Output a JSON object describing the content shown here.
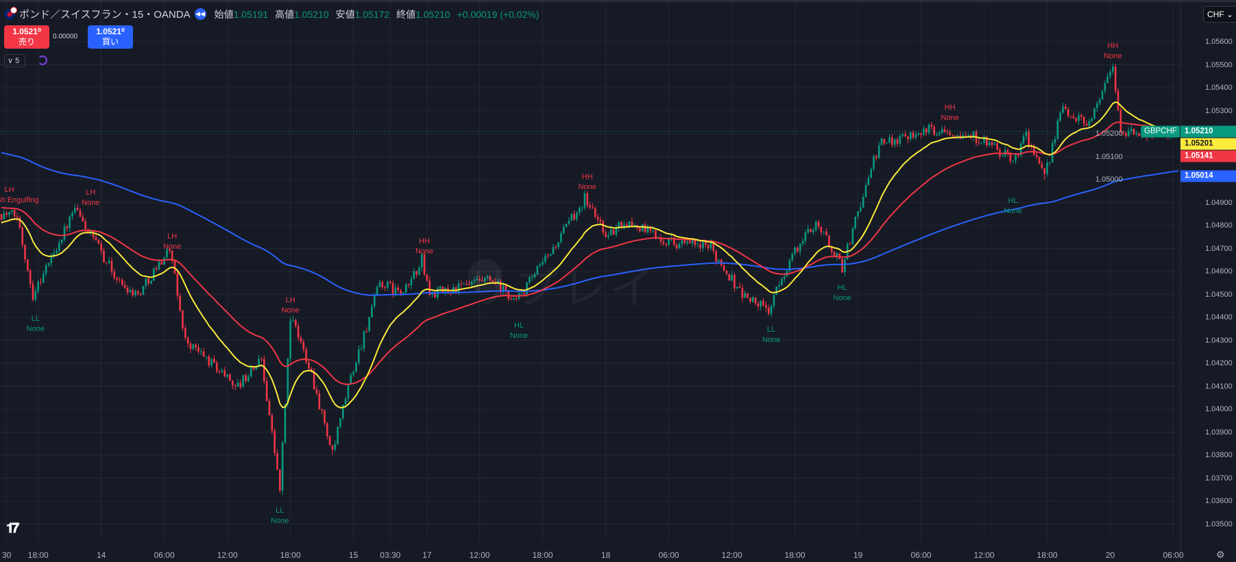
{
  "header": {
    "title": "ポンド／スイスフラン・15・OANDA",
    "open_label": "始値",
    "open": "1.05191",
    "high_label": "高値",
    "high": "1.05210",
    "low_label": "安値",
    "low": "1.05172",
    "close_label": "終値",
    "close": "1.05210",
    "change": "+0.00019 (+0.02%)"
  },
  "trade": {
    "sell_price": "1.0521⁰",
    "sell_label": "売り",
    "spread": "0.00000",
    "buy_price": "1.0521⁰",
    "buy_label": "買い",
    "lots": "∨ 5"
  },
  "currency": "CHF ⌄",
  "watermark": "リプレイ",
  "logo": "TV",
  "colors": {
    "up": "#089981",
    "down": "#f23645",
    "ema_fast": "#ffeb3b",
    "ema_mid": "#f23645",
    "ema_slow": "#2962ff",
    "bg": "#161a25",
    "grid": "#232733"
  },
  "chart_data": {
    "type": "candlestick",
    "symbol": "GBPCHF",
    "timeframe": "15",
    "ylim": [
      1.0345,
      1.0565
    ],
    "y_ticks": [
      "1.05600",
      "1.05500",
      "1.05400",
      "1.05300",
      "1.05200",
      "1.05100",
      "1.05000",
      "1.04900",
      "1.04800",
      "1.04700",
      "1.04600",
      "1.04500",
      "1.04400",
      "1.04300",
      "1.04200",
      "1.04100",
      "1.04000",
      "1.03900",
      "1.03800",
      "1.03700",
      "1.03600",
      "1.03500"
    ],
    "x_ticks": [
      {
        "label": "30",
        "i": 2
      },
      {
        "label": "18:00",
        "i": 14
      },
      {
        "label": "14",
        "i": 38
      },
      {
        "label": "06:00",
        "i": 62
      },
      {
        "label": "12:00",
        "i": 86
      },
      {
        "label": "18:00",
        "i": 110
      },
      {
        "label": "15",
        "i": 134
      },
      {
        "label": "03:30",
        "i": 148
      },
      {
        "label": "17",
        "i": 162
      },
      {
        "label": "12:00",
        "i": 182
      },
      {
        "label": "18:00",
        "i": 206
      },
      {
        "label": "18",
        "i": 230
      },
      {
        "label": "06:00",
        "i": 254
      },
      {
        "label": "12:00",
        "i": 278
      },
      {
        "label": "18:00",
        "i": 302
      },
      {
        "label": "19",
        "i": 326
      },
      {
        "label": "06:00",
        "i": 350
      },
      {
        "label": "12:00",
        "i": 374
      },
      {
        "label": "18:00",
        "i": 398
      },
      {
        "label": "20",
        "i": 422
      },
      {
        "label": "06:00",
        "i": 446
      }
    ],
    "price_path": [
      [
        0,
        1.0485
      ],
      [
        6,
        1.0484
      ],
      [
        12,
        1.045
      ],
      [
        28,
        1.0487
      ],
      [
        45,
        1.0455
      ],
      [
        52,
        1.045
      ],
      [
        64,
        1.047
      ],
      [
        70,
        1.043
      ],
      [
        90,
        1.041
      ],
      [
        99,
        1.0422
      ],
      [
        106,
        1.0365
      ],
      [
        110,
        1.044
      ],
      [
        117,
        1.042
      ],
      [
        126,
        1.038
      ],
      [
        132,
        1.041
      ],
      [
        144,
        1.0455
      ],
      [
        153,
        1.045
      ],
      [
        160,
        1.0465
      ],
      [
        163,
        1.045
      ],
      [
        186,
        1.0456
      ],
      [
        196,
        1.0447
      ],
      [
        210,
        1.047
      ],
      [
        222,
        1.0492
      ],
      [
        231,
        1.0475
      ],
      [
        237,
        1.0482
      ],
      [
        255,
        1.0473
      ],
      [
        270,
        1.047
      ],
      [
        282,
        1.045
      ],
      [
        292,
        1.0443
      ],
      [
        300,
        1.0465
      ],
      [
        310,
        1.0482
      ],
      [
        320,
        1.0462
      ],
      [
        327,
        1.049
      ],
      [
        334,
        1.0515
      ],
      [
        348,
        1.0521
      ],
      [
        360,
        1.0522
      ],
      [
        372,
        1.0518
      ],
      [
        385,
        1.0508
      ],
      [
        390,
        1.052
      ],
      [
        397,
        1.05
      ],
      [
        403,
        1.053
      ],
      [
        414,
        1.0525
      ],
      [
        423,
        1.055
      ],
      [
        426,
        1.052
      ],
      [
        448,
        1.0521
      ]
    ],
    "ema_seeds": {
      "fast": 1.0481,
      "mid": 1.0488,
      "slow": 1.0512
    },
    "last_price": {
      "symbol": "GBPCHF",
      "value": "1.05210"
    },
    "ma_badges": [
      {
        "value": "1.05201",
        "color": "#ffeb3b",
        "text": "#131722",
        "price": 1.05201
      },
      {
        "value": "1.05141",
        "color": "#f23645",
        "text": "#ffffff",
        "price": 1.05141
      },
      {
        "value": "1.05014",
        "color": "#2962ff",
        "text": "#ffffff",
        "price": 1.05014
      }
    ],
    "annotations": [
      {
        "kind": "LH",
        "note": "Bearish Engulfing",
        "i": 3,
        "price": 1.04976,
        "color": "#f23645"
      },
      {
        "kind": "LL",
        "note": "None",
        "i": 13,
        "price": 1.04415,
        "color": "#089981"
      },
      {
        "kind": "LH",
        "note": "None",
        "i": 34,
        "price": 1.04964,
        "color": "#f23645"
      },
      {
        "kind": "LH",
        "note": "None",
        "i": 65,
        "price": 1.04773,
        "color": "#f23645"
      },
      {
        "kind": "LH",
        "note": "None",
        "i": 110,
        "price": 1.04496,
        "color": "#f23645"
      },
      {
        "kind": "LL",
        "note": "None",
        "i": 106,
        "price": 1.03579,
        "color": "#089981"
      },
      {
        "kind": "HH",
        "note": "None",
        "i": 161,
        "price": 1.04752,
        "color": "#f23645"
      },
      {
        "kind": "HL",
        "note": "None",
        "i": 197,
        "price": 1.04385,
        "color": "#089981"
      },
      {
        "kind": "HH",
        "note": "None",
        "i": 223,
        "price": 1.05033,
        "color": "#f23645"
      },
      {
        "kind": "LL",
        "note": "None",
        "i": 293,
        "price": 1.04367,
        "color": "#089981"
      },
      {
        "kind": "HL",
        "note": "None",
        "i": 320,
        "price": 1.04549,
        "color": "#089981"
      },
      {
        "kind": "HH",
        "note": "None",
        "i": 361,
        "price": 1.05334,
        "color": "#f23645"
      },
      {
        "kind": "HL",
        "note": "None",
        "i": 385,
        "price": 1.04928,
        "color": "#089981"
      },
      {
        "kind": "HH",
        "note": "None",
        "i": 423,
        "price": 1.05603,
        "color": "#f23645"
      }
    ]
  }
}
